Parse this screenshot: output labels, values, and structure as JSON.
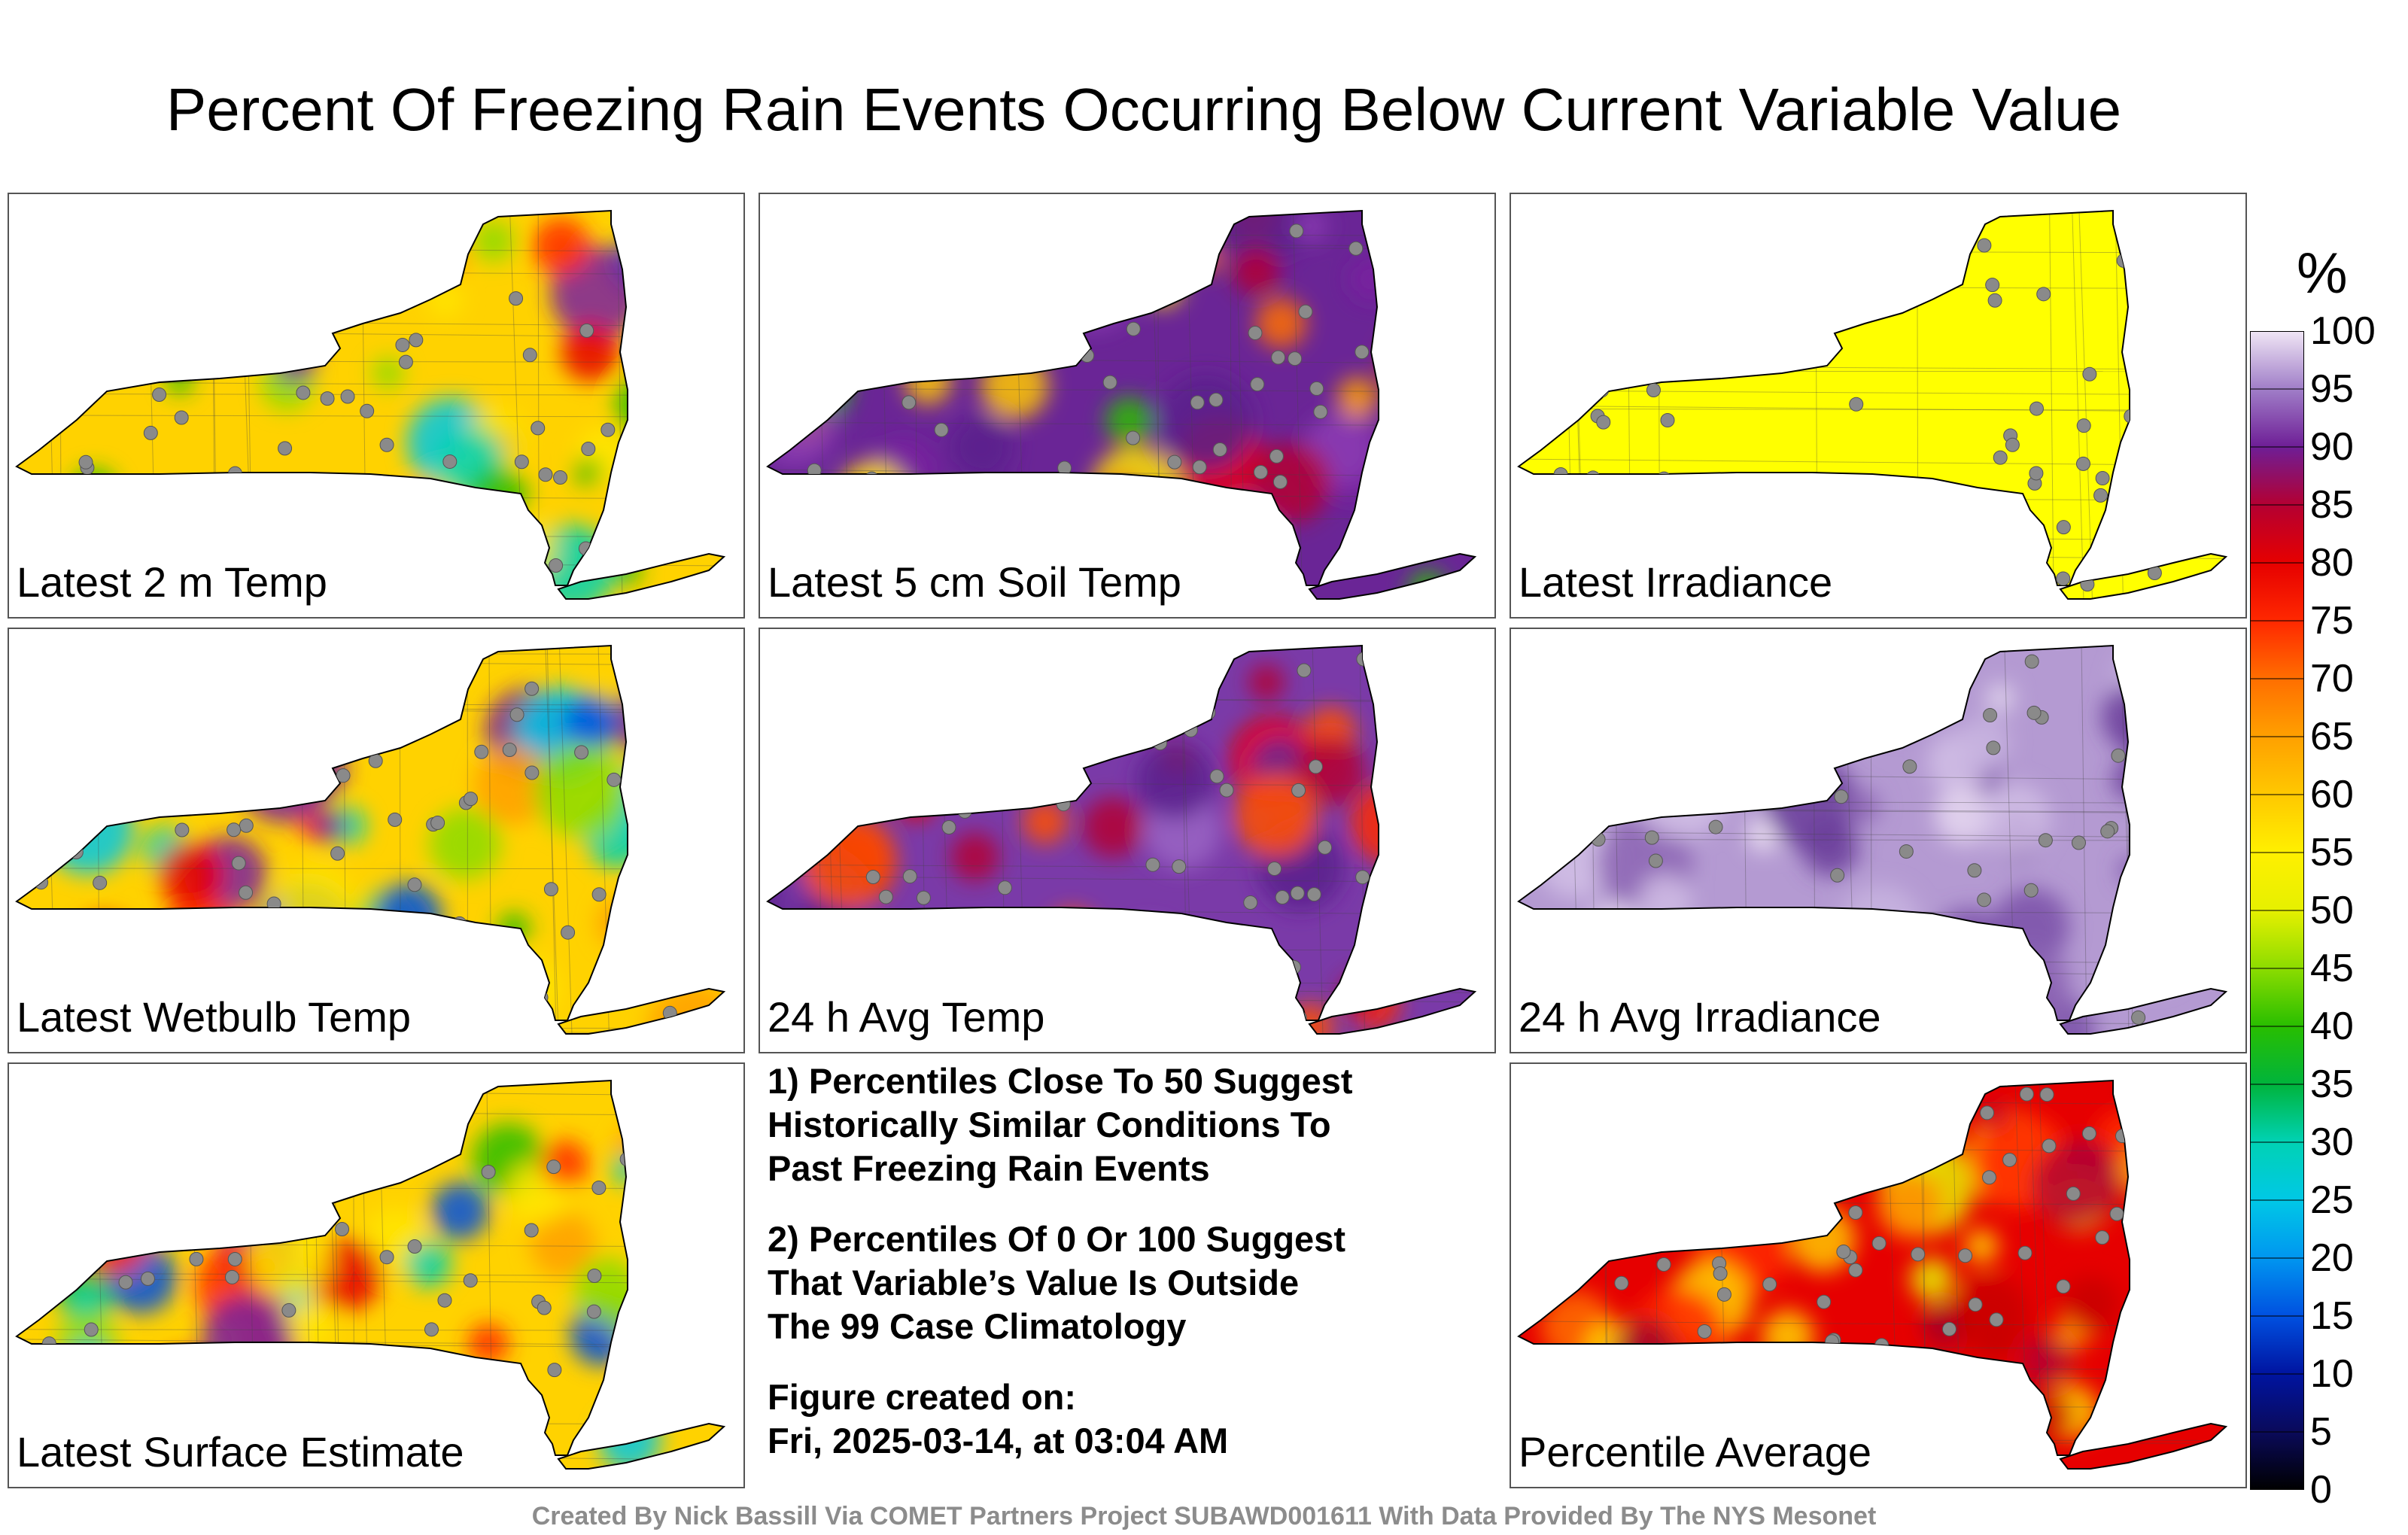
{
  "title": "Percent Of Freezing Rain Events Occurring Below Current Variable Value",
  "panels": [
    {
      "label": "Latest 2 m Temp",
      "scheme": "mixed"
    },
    {
      "label": "Latest 5 cm Soil Temp",
      "scheme": "warm"
    },
    {
      "label": "Latest Irradiance",
      "scheme": "yellow"
    },
    {
      "label": "Latest Wetbulb Temp",
      "scheme": "mixed"
    },
    {
      "label": "24 h Avg Temp",
      "scheme": "purple"
    },
    {
      "label": "24 h Avg Irradiance",
      "scheme": "lavender"
    },
    {
      "label": "Latest Surface Estimate",
      "scheme": "mixed"
    },
    {
      "label": "Percentile Average",
      "scheme": "average"
    }
  ],
  "notes": {
    "note1": "1) Percentiles Close To 50 Suggest\nHistorically Similar Conditions To\nPast Freezing Rain Events",
    "note2": "2) Percentiles Of 0 Or 100 Suggest\nThat Variable’s Value Is Outside\nThe 99 Case Climatology",
    "created": "Figure created on:\nFri, 2025-03-14, at 03:04 AM"
  },
  "colorbar": {
    "unit": "%",
    "ticks": [
      "100",
      "95",
      "90",
      "85",
      "80",
      "75",
      "70",
      "65",
      "60",
      "55",
      "50",
      "45",
      "40",
      "35",
      "30",
      "25",
      "20",
      "15",
      "10",
      "5",
      "0"
    ],
    "range": [
      0,
      100
    ]
  },
  "credit": "Created By Nick Bassill Via COMET Partners Project SUBAWD001611 With Data Provided By The NYS Mesonet"
}
